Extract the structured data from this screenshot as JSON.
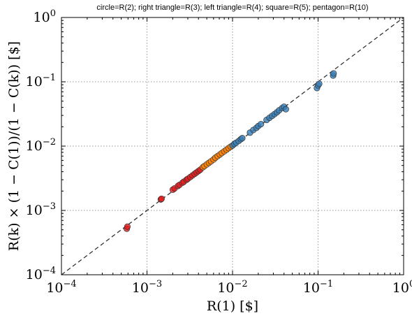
{
  "chart_data": {
    "type": "scatter",
    "title": "circle=R(2); right triangle=R(3); left triangle=R(4); square=R(5); pentagon=R(10)",
    "xlabel": "R(1) [$]",
    "ylabel": "R(k) × (1 − C(1))/(1 − C(k)) [$]",
    "xscale": "log",
    "yscale": "log",
    "xlim": [
      0.0001,
      1
    ],
    "ylim": [
      0.0001,
      1
    ],
    "grid": true,
    "x_ticks": [
      {
        "value": 0.0001,
        "base": "10",
        "exp": "−4"
      },
      {
        "value": 0.001,
        "base": "10",
        "exp": "−3"
      },
      {
        "value": 0.01,
        "base": "10",
        "exp": "−2"
      },
      {
        "value": 0.1,
        "base": "10",
        "exp": "−1"
      },
      {
        "value": 1,
        "base": "10",
        "exp": "0"
      }
    ],
    "y_ticks": [
      {
        "value": 0.0001,
        "base": "10",
        "exp": "−4"
      },
      {
        "value": 0.001,
        "base": "10",
        "exp": "−3"
      },
      {
        "value": 0.01,
        "base": "10",
        "exp": "−2"
      },
      {
        "value": 0.1,
        "base": "10",
        "exp": "−1"
      },
      {
        "value": 1,
        "base": "10",
        "exp": "0"
      }
    ],
    "reference_line": {
      "style": "dashed",
      "x": [
        0.0001,
        1
      ],
      "y": [
        0.0001,
        1
      ],
      "color": "#333333"
    },
    "series": [
      {
        "color": "#e41a1c",
        "points": [
          [
            0.00058,
            0.00052
          ],
          [
            0.00059,
            0.00056
          ],
          [
            0.00145,
            0.00148
          ],
          [
            0.00148,
            0.00152
          ],
          [
            0.002,
            0.0021
          ],
          [
            0.0021,
            0.0022
          ],
          [
            0.0023,
            0.0024
          ],
          [
            0.0024,
            0.0025
          ],
          [
            0.0026,
            0.0027
          ],
          [
            0.0027,
            0.0028
          ],
          [
            0.0029,
            0.003
          ],
          [
            0.003,
            0.0031
          ],
          [
            0.0032,
            0.0033
          ],
          [
            0.0034,
            0.0035
          ],
          [
            0.0036,
            0.0037
          ],
          [
            0.0038,
            0.0039
          ],
          [
            0.004,
            0.0041
          ],
          [
            0.0042,
            0.0043
          ]
        ]
      },
      {
        "color": "#ff7f00",
        "points": [
          [
            0.0045,
            0.0047
          ],
          [
            0.0047,
            0.0049
          ],
          [
            0.005,
            0.0052
          ],
          [
            0.0053,
            0.0055
          ],
          [
            0.0056,
            0.0058
          ],
          [
            0.006,
            0.0062
          ],
          [
            0.0063,
            0.0066
          ],
          [
            0.0067,
            0.007
          ],
          [
            0.0071,
            0.0074
          ],
          [
            0.0075,
            0.0078
          ],
          [
            0.008,
            0.0083
          ],
          [
            0.0085,
            0.0088
          ],
          [
            0.009,
            0.0093
          ],
          [
            0.0095,
            0.0098
          ]
        ]
      },
      {
        "color": "#377eb8",
        "points": [
          [
            0.01,
            0.0102
          ],
          [
            0.0105,
            0.0108
          ],
          [
            0.011,
            0.0113
          ],
          [
            0.0118,
            0.012
          ],
          [
            0.0125,
            0.0128
          ],
          [
            0.013,
            0.0133
          ],
          [
            0.016,
            0.0162
          ],
          [
            0.0175,
            0.0178
          ],
          [
            0.019,
            0.0192
          ],
          [
            0.02,
            0.0205
          ],
          [
            0.0215,
            0.022
          ],
          [
            0.025,
            0.0255
          ],
          [
            0.027,
            0.0275
          ],
          [
            0.029,
            0.0295
          ],
          [
            0.031,
            0.0315
          ],
          [
            0.033,
            0.0335
          ],
          [
            0.035,
            0.036
          ],
          [
            0.038,
            0.039
          ],
          [
            0.04,
            0.041
          ],
          [
            0.042,
            0.0375
          ],
          [
            0.097,
            0.08
          ],
          [
            0.1,
            0.088
          ],
          [
            0.103,
            0.093
          ],
          [
            0.15,
            0.125
          ],
          [
            0.152,
            0.135
          ]
        ]
      }
    ]
  }
}
